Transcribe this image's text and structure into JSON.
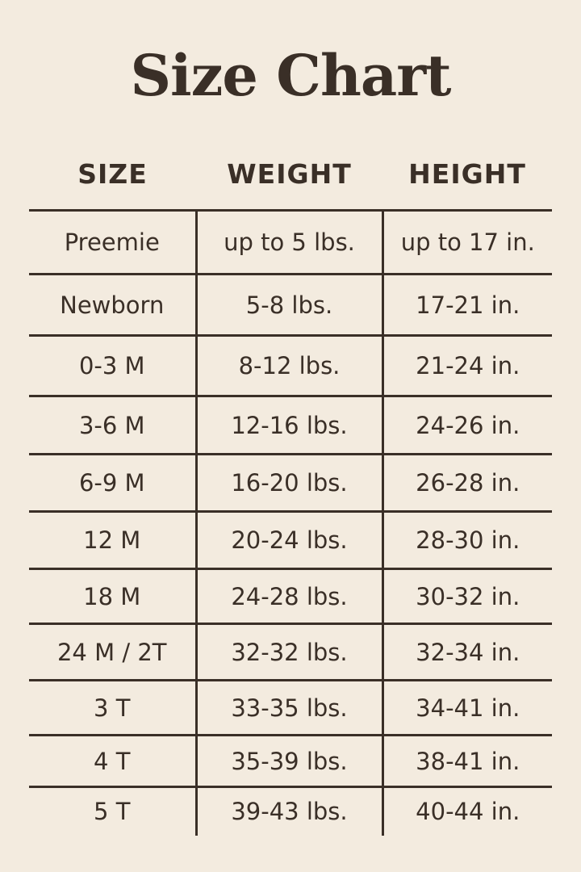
{
  "title": "Size Chart",
  "colors": {
    "background": "#f3ebdf",
    "text": "#3a2f27"
  },
  "headers": [
    "SIZE",
    "WEIGHT",
    "HEIGHT"
  ],
  "rows": [
    [
      "Preemie",
      "up to 5 lbs.",
      "up to 17 in."
    ],
    [
      "Newborn",
      "5-8 lbs.",
      "17-21 in."
    ],
    [
      "0-3 M",
      "8-12 lbs.",
      "21-24 in."
    ],
    [
      "3-6 M",
      "12-16 lbs.",
      "24-26 in."
    ],
    [
      "6-9 M",
      "16-20 lbs.",
      "26-28 in."
    ],
    [
      "12 M",
      "20-24 lbs.",
      "28-30 in."
    ],
    [
      "18 M",
      "24-28 lbs.",
      "30-32 in."
    ],
    [
      "24 M / 2T",
      "32-32 lbs.",
      "32-34 in."
    ],
    [
      "3 T",
      "33-35 lbs.",
      "34-41 in."
    ],
    [
      "4 T",
      "35-39 lbs.",
      "38-41 in."
    ],
    [
      "5 T",
      "39-43 lbs.",
      "40-44 in."
    ]
  ]
}
